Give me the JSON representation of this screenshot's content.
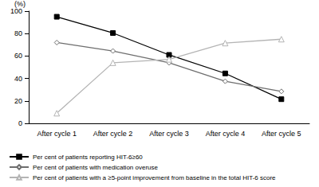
{
  "chart_data": {
    "type": "line",
    "y_label": "(%)",
    "categories": [
      "After cycle 1",
      "After cycle 2",
      "After cycle 3",
      "After cycle 4",
      "After cycle 5"
    ],
    "series": [
      {
        "name": "Per cent of patients reporting HIT-6≥60",
        "color": "#000000",
        "marker": "square",
        "line_style": "solid",
        "values": [
          95,
          80.5,
          61,
          44.5,
          21.5
        ]
      },
      {
        "name": "Per cent of patients with medication overuse",
        "color": "#6e6e6e",
        "marker": "open_diamond",
        "line_style": "solid",
        "values": [
          72,
          64.5,
          54,
          37.5,
          28.5
        ]
      },
      {
        "name": "Per cent of patients with a ≥5-point improvement from baseline in the total HIT-6 score",
        "color": "#b4b4b4",
        "marker": "open_triangle",
        "line_style": "solid",
        "values": [
          9,
          54,
          57,
          71.5,
          75
        ]
      }
    ],
    "ylim": [
      0,
      100
    ],
    "yticks": [
      0,
      20,
      40,
      60,
      80,
      100
    ],
    "grid": false,
    "legend": "bottom"
  }
}
